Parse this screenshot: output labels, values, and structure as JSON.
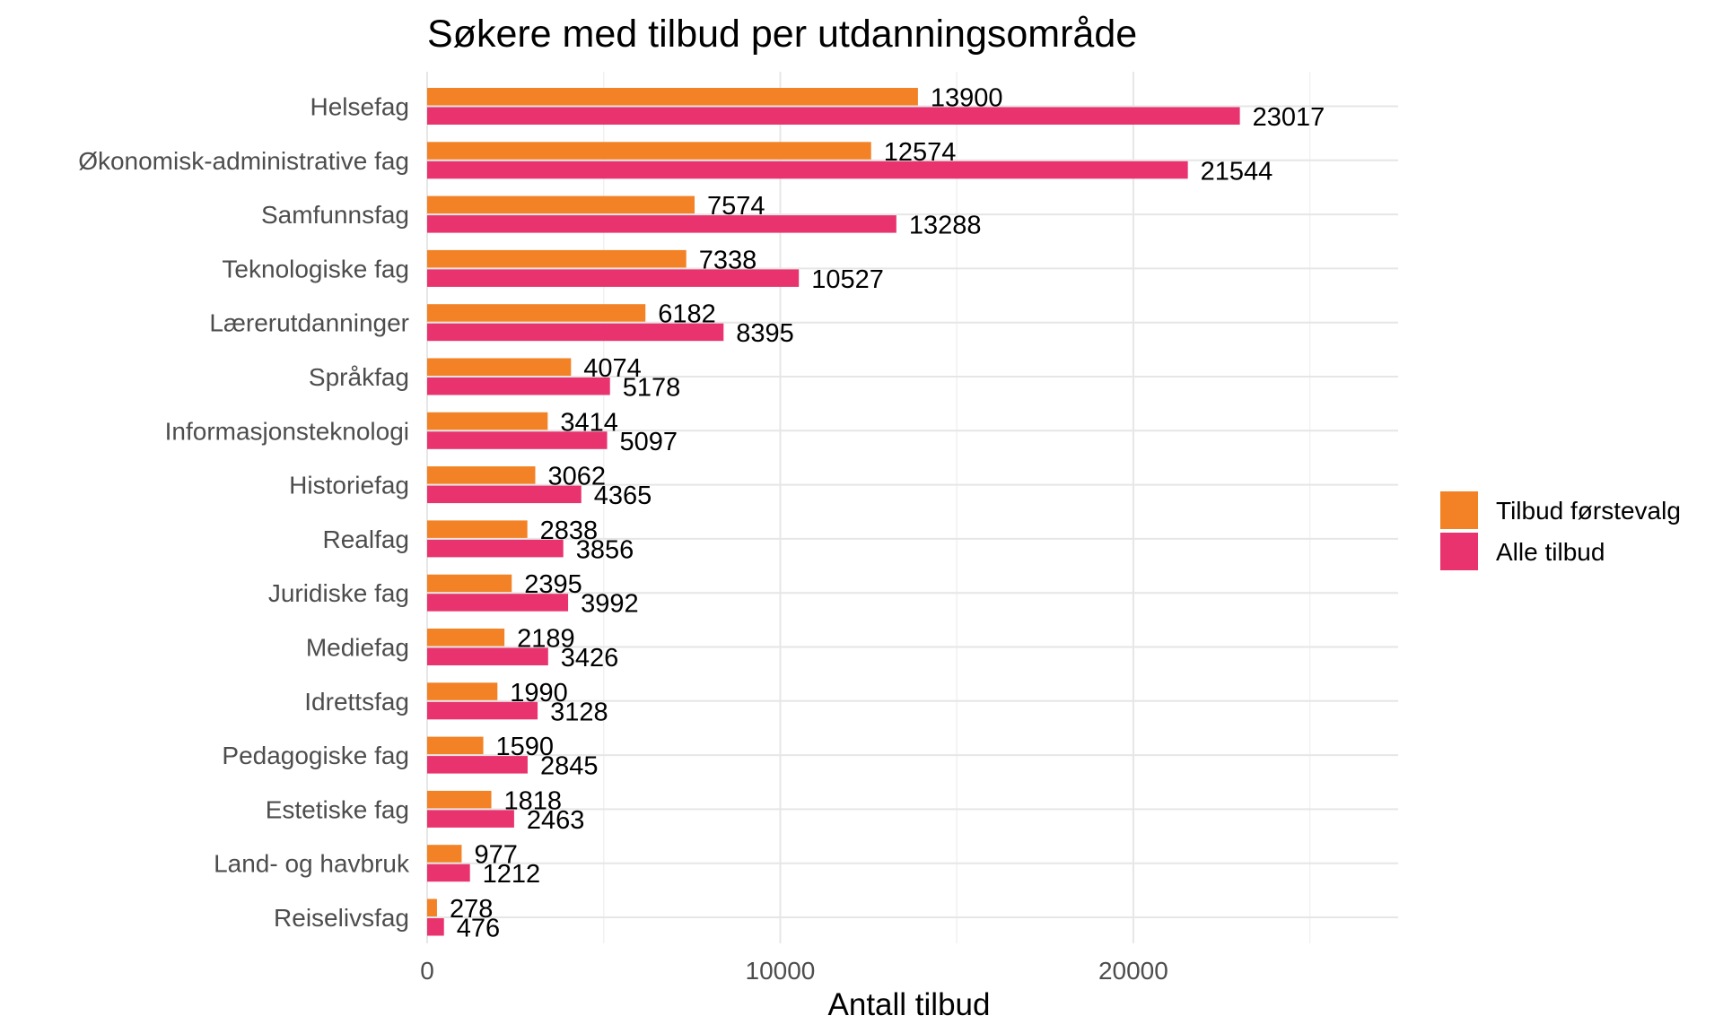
{
  "chart_data": {
    "type": "bar",
    "orientation": "horizontal",
    "title": "Søkere med tilbud per utdanningsområde",
    "xlabel": "Antall tilbud",
    "ylabel": "",
    "xlim": [
      0,
      27500
    ],
    "x_ticks": [
      0,
      10000,
      20000
    ],
    "x_tick_labels": [
      "0",
      "10000",
      "20000"
    ],
    "grid": true,
    "legend_position": "right",
    "categories": [
      "Helsefag",
      "Økonomisk-administrative fag",
      "Samfunnsfag",
      "Teknologiske fag",
      "Lærerutdanninger",
      "Språkfag",
      "Informasjonsteknologi",
      "Historiefag",
      "Realfag",
      "Juridiske fag",
      "Mediefag",
      "Idrettsfag",
      "Pedagogiske fag",
      "Estetiske fag",
      "Land- og havbruk",
      "Reiselivsfag"
    ],
    "series": [
      {
        "name": "Tilbud førstevalg",
        "color": "#f28225",
        "values": [
          13900,
          12574,
          7574,
          7338,
          6182,
          4074,
          3414,
          3062,
          2838,
          2395,
          2189,
          1990,
          1590,
          1818,
          977,
          278
        ]
      },
      {
        "name": "Alle tilbud",
        "color": "#e8336f",
        "values": [
          23017,
          21544,
          13288,
          10527,
          8395,
          5178,
          5097,
          4365,
          3856,
          3992,
          3426,
          3128,
          2845,
          2463,
          1212,
          476
        ]
      }
    ]
  }
}
